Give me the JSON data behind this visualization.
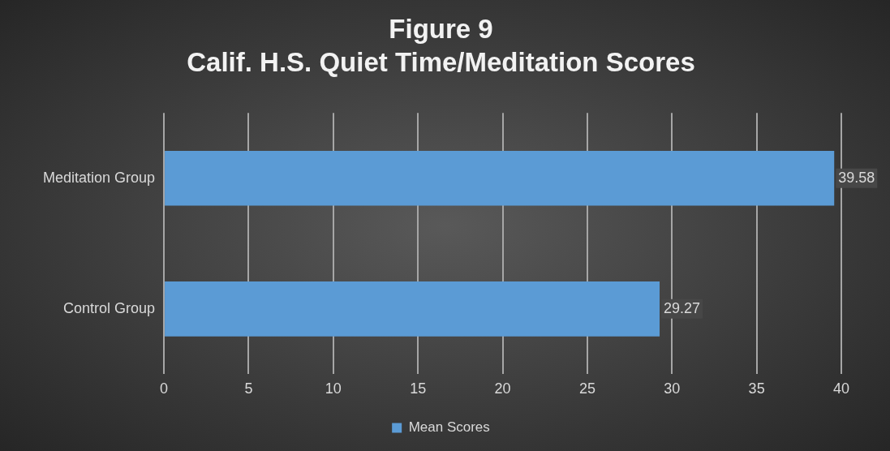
{
  "chart_data": {
    "type": "bar",
    "orientation": "horizontal",
    "title": "Figure 9",
    "subtitle": "Calif. H.S. Quiet Time/Meditation Scores",
    "categories": [
      "Meditation Group",
      "Control Group"
    ],
    "series": [
      {
        "name": "Mean Scores",
        "color": "#5b9bd5",
        "values": [
          39.58,
          29.27
        ]
      }
    ],
    "xlim": [
      0,
      40
    ],
    "xticks": [
      0,
      5,
      10,
      15,
      20,
      25,
      30,
      35,
      40
    ],
    "grid": "x",
    "legend": "bottom",
    "data_labels": true
  }
}
